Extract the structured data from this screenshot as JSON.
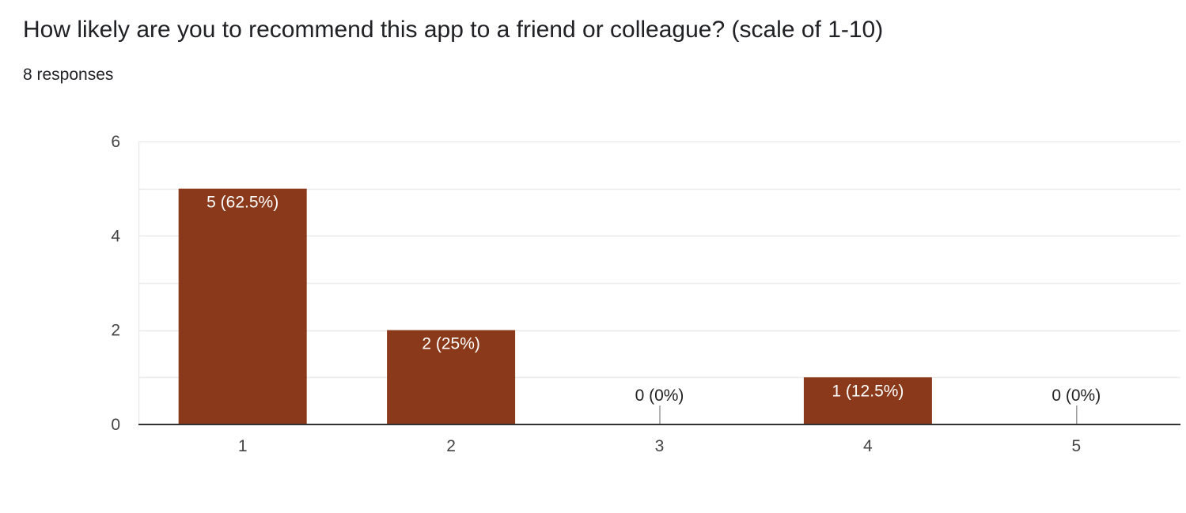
{
  "header": {
    "question": "How likely are you to recommend this app to a friend or colleague? (scale of 1-10)",
    "responses": "8 responses"
  },
  "colors": {
    "bar": "#8a3a1a",
    "grid": "#ebebeb",
    "axis": "#333333",
    "inside_label": "#ffffff",
    "outside_label": "#222222",
    "tick_text": "#444444"
  },
  "chart_data": {
    "type": "bar",
    "title": "How likely are you to recommend this app to a friend or colleague? (scale of 1-10)",
    "xlabel": "",
    "ylabel": "",
    "categories": [
      "1",
      "2",
      "3",
      "4",
      "5"
    ],
    "values": [
      5,
      2,
      0,
      1,
      0
    ],
    "data_labels": [
      "5 (62.5%)",
      "2 (25%)",
      "0 (0%)",
      "1 (12.5%)",
      "0 (0%)"
    ],
    "ylim": [
      0,
      6
    ],
    "yticks": [
      0,
      2,
      4,
      6
    ],
    "minor_grid_step": 1,
    "grid": true,
    "legend": "none"
  }
}
